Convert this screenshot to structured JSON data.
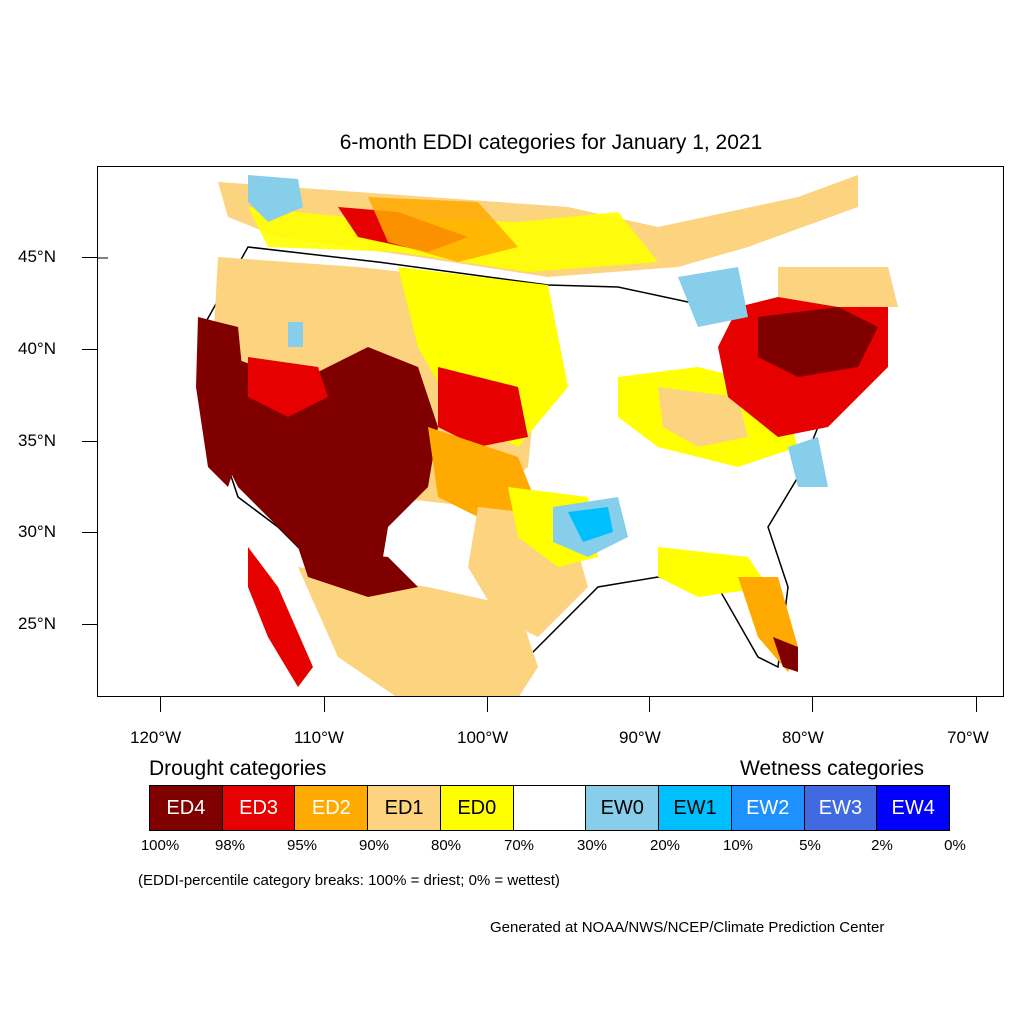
{
  "title": "6-month EDDI categories for January 1, 2021",
  "axes": {
    "lat_labels": [
      "45°N",
      "40°N",
      "35°N",
      "30°N",
      "25°N"
    ],
    "lon_labels": [
      "120°W",
      "110°W",
      "100°W",
      "90°W",
      "80°W",
      "70°W"
    ]
  },
  "legend": {
    "drought_heading": "Drought categories",
    "wetness_heading": "Wetness categories",
    "categories": [
      {
        "label": "ED4",
        "color": "#800000",
        "text_color": "#ffffff"
      },
      {
        "label": "ED3",
        "color": "#e60000",
        "text_color": "#ffffff"
      },
      {
        "label": "ED2",
        "color": "#ffaa00",
        "text_color": "#ffffff"
      },
      {
        "label": "ED1",
        "color": "#fcd37f",
        "text_color": "#000000"
      },
      {
        "label": "ED0",
        "color": "#ffff00",
        "text_color": "#000000"
      },
      {
        "label": "",
        "color": "#ffffff",
        "text_color": "#000000"
      },
      {
        "label": "EW0",
        "color": "#87ceeb",
        "text_color": "#000000"
      },
      {
        "label": "EW1",
        "color": "#00bfff",
        "text_color": "#000000"
      },
      {
        "label": "EW2",
        "color": "#1e90ff",
        "text_color": "#ffffff"
      },
      {
        "label": "EW3",
        "color": "#4169e1",
        "text_color": "#ffffff"
      },
      {
        "label": "EW4",
        "color": "#0000ff",
        "text_color": "#ffffff"
      }
    ],
    "breaks": [
      "100%",
      "98%",
      "95%",
      "90%",
      "80%",
      "70%",
      "30%",
      "20%",
      "10%",
      "5%",
      "2%",
      "0%"
    ]
  },
  "note": "(EDDI-percentile category breaks: 100% = driest; 0% = wettest)",
  "credit": "Generated at NOAA/NWS/NCEP/Climate Prediction Center"
}
